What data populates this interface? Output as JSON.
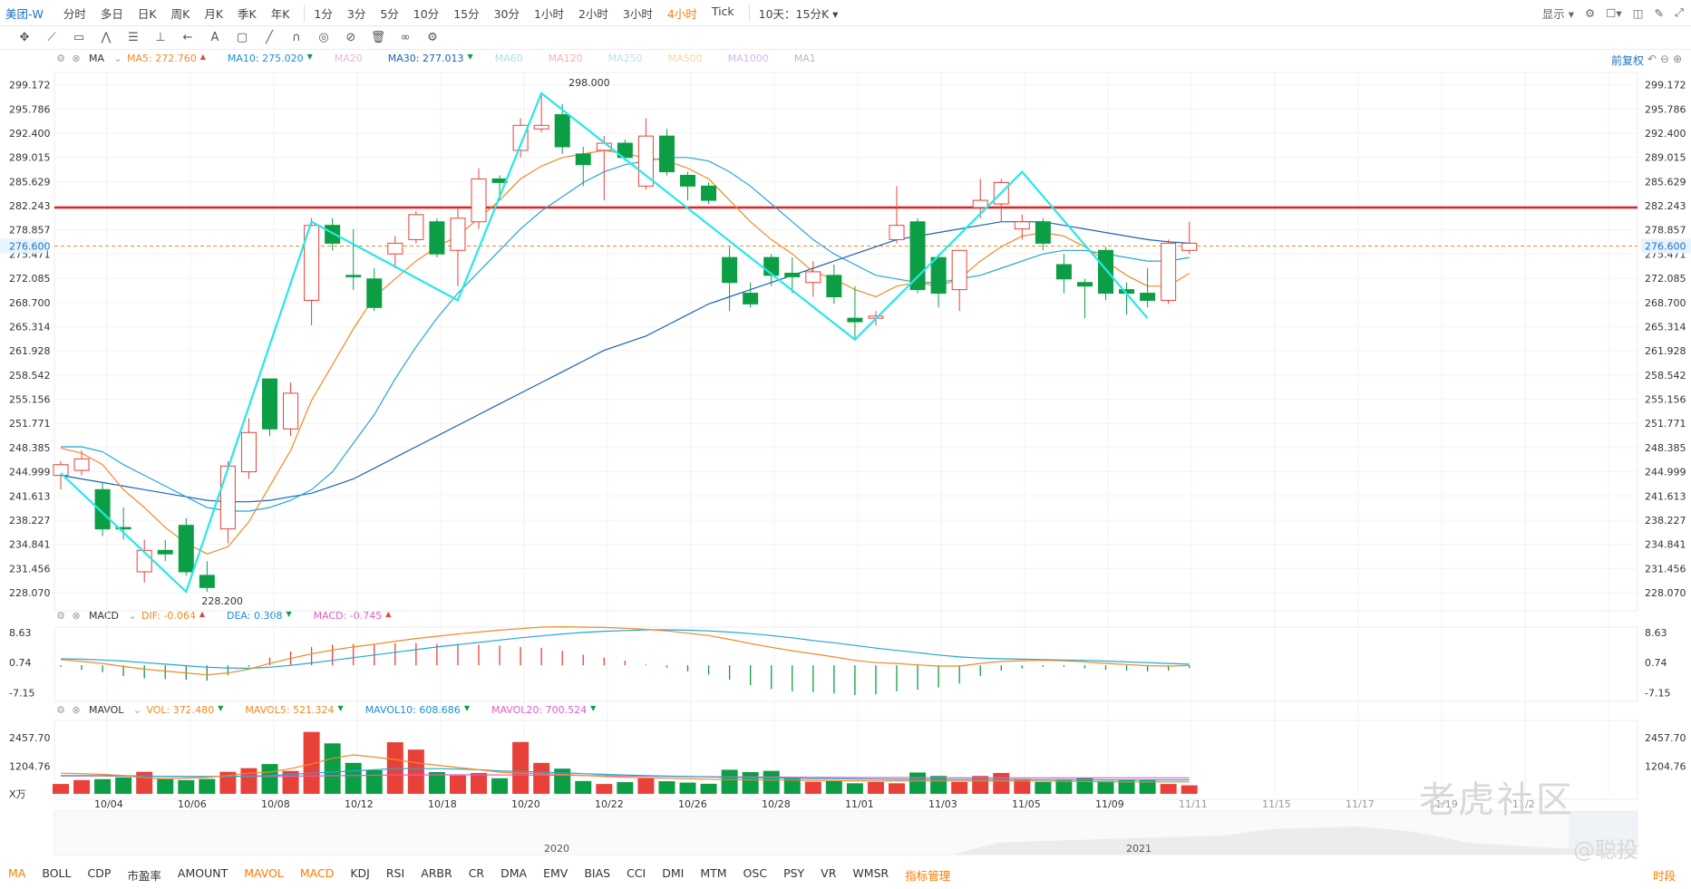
{
  "toolbar": {
    "symbol": "美团-W",
    "periods": [
      "分时",
      "多日",
      "日K",
      "周K",
      "月K",
      "季K",
      "年K",
      "1分",
      "3分",
      "5分",
      "10分",
      "15分",
      "30分",
      "1小时",
      "2小时",
      "3小时",
      "4小时",
      "Tick"
    ],
    "active_period": "4小时",
    "range_selector": "10天：15分K",
    "display_label": "显示"
  },
  "drawing_tools": [
    "move",
    "line",
    "rect",
    "wave",
    "fib",
    "measure",
    "arrow",
    "text",
    "note",
    "pen",
    "magnet",
    "eye-off",
    "trash",
    "link",
    "gear"
  ],
  "main_legend": {
    "indicator": "MA",
    "items": [
      {
        "label": "MA5: 272.760",
        "color": "#f08a24",
        "arrow": "▲"
      },
      {
        "label": "MA10: 275.020",
        "color": "#1b8fd6",
        "arrow": "▼"
      },
      {
        "label": "MA20",
        "color": "#e9b6e0",
        "arrow": ""
      },
      {
        "label": "MA30: 277.013",
        "color": "#1a62b8",
        "arrow": "▼"
      },
      {
        "label": "MA60",
        "color": "#a9e0e8",
        "arrow": ""
      },
      {
        "label": "MA120",
        "color": "#f6b2b2",
        "arrow": ""
      },
      {
        "label": "MA250",
        "color": "#b7dff5",
        "arrow": ""
      },
      {
        "label": "MA500",
        "color": "#f5d89a",
        "arrow": ""
      },
      {
        "label": "MA1000",
        "color": "#d4b6ea",
        "arrow": ""
      },
      {
        "label": "MA1",
        "color": "#bbbbbb",
        "arrow": ""
      }
    ],
    "adjust_label": "前复权"
  },
  "macd_legend": {
    "indicator": "MACD",
    "items": [
      {
        "label": "DIF: -0.064",
        "color": "#f08a24",
        "arrow": "▲"
      },
      {
        "label": "DEA: 0.308",
        "color": "#1b8fd6",
        "arrow": "▼"
      },
      {
        "label": "MACD: -0.745",
        "color": "#e05fc0",
        "arrow": "▲"
      }
    ]
  },
  "vol_legend": {
    "indicator": "MAVOL",
    "items": [
      {
        "label": "VOL: 372.480",
        "color": "#f08a24",
        "arrow": "▼"
      },
      {
        "label": "MAVOL5: 521.324",
        "color": "#f08a24",
        "arrow": "▼"
      },
      {
        "label": "MAVOL10: 608.686",
        "color": "#1b8fd6",
        "arrow": "▼"
      },
      {
        "label": "MAVOL20: 700.524",
        "color": "#e05fc0",
        "arrow": "▼"
      }
    ]
  },
  "indicator_tabs": [
    "MA",
    "BOLL",
    "CDP",
    "市盈率",
    "AMOUNT",
    "MAVOL",
    "MACD",
    "KDJ",
    "RSI",
    "ARBR",
    "CR",
    "DMA",
    "EMV",
    "BIAS",
    "CCI",
    "DMI",
    "MTM",
    "OSC",
    "PSY",
    "VR",
    "WMSR",
    "指标管理"
  ],
  "indicator_tabs_active": [
    "MA",
    "MAVOL",
    "MACD",
    "指标管理"
  ],
  "corner_label": "时段",
  "watermark": {
    "main": "老虎社区",
    "author": "@聪投"
  },
  "chart_data": {
    "type": "candlestick",
    "price_ticks": [
      "299.172",
      "295.786",
      "292.400",
      "289.015",
      "285.629",
      "282.243",
      "278.857",
      "275.471",
      "272.085",
      "268.700",
      "265.314",
      "261.928",
      "258.542",
      "255.156",
      "251.771",
      "248.385",
      "244.999",
      "241.613",
      "238.227",
      "234.841",
      "231.456",
      "228.070"
    ],
    "price_ylim": [
      226.3,
      300.9
    ],
    "current_price": "276.600",
    "resistance_line": 282.0,
    "high_annotation": "298.000",
    "low_annotation": "228.200",
    "x_labels": [
      "10/04",
      "10/06",
      "10/08",
      "10/12",
      "10/18",
      "10/20",
      "10/22",
      "10/26",
      "10/28",
      "11/01",
      "11/03",
      "11/05",
      "11/09",
      "11/11",
      "11/15",
      "11/17",
      "11/19",
      "11/2"
    ],
    "candles": [
      {
        "o": 244.5,
        "h": 246.5,
        "l": 242.5,
        "c": 246.0
      },
      {
        "o": 245.2,
        "h": 248.0,
        "l": 244.5,
        "c": 246.8
      },
      {
        "o": 242.5,
        "h": 243.5,
        "l": 236.0,
        "c": 237.0
      },
      {
        "o": 237.2,
        "h": 240.0,
        "l": 235.5,
        "c": 237.0
      },
      {
        "o": 231.0,
        "h": 235.5,
        "l": 229.5,
        "c": 234.0
      },
      {
        "o": 234.0,
        "h": 235.5,
        "l": 232.5,
        "c": 233.5
      },
      {
        "o": 237.5,
        "h": 238.5,
        "l": 230.5,
        "c": 231.0
      },
      {
        "o": 230.5,
        "h": 232.5,
        "l": 228.2,
        "c": 228.8
      },
      {
        "o": 237.0,
        "h": 246.5,
        "l": 235.0,
        "c": 245.8
      },
      {
        "o": 245.0,
        "h": 252.5,
        "l": 244.0,
        "c": 250.5
      },
      {
        "o": 258.0,
        "h": 258.0,
        "l": 250.0,
        "c": 251.0
      },
      {
        "o": 251.0,
        "h": 257.5,
        "l": 250.0,
        "c": 256.0
      },
      {
        "o": 269.0,
        "h": 280.5,
        "l": 265.5,
        "c": 279.5
      },
      {
        "o": 279.5,
        "h": 280.5,
        "l": 276.0,
        "c": 277.0
      },
      {
        "o": 272.5,
        "h": 279.0,
        "l": 270.5,
        "c": 272.3
      },
      {
        "o": 272.0,
        "h": 273.5,
        "l": 267.5,
        "c": 268.0
      },
      {
        "o": 275.5,
        "h": 278.0,
        "l": 273.5,
        "c": 277.0
      },
      {
        "o": 277.5,
        "h": 281.5,
        "l": 277.0,
        "c": 281.0
      },
      {
        "o": 280.0,
        "h": 280.5,
        "l": 275.0,
        "c": 275.5
      },
      {
        "o": 276.0,
        "h": 282.0,
        "l": 271.0,
        "c": 280.5
      },
      {
        "o": 280.0,
        "h": 287.5,
        "l": 279.0,
        "c": 286.0
      },
      {
        "o": 286.0,
        "h": 286.5,
        "l": 283.0,
        "c": 285.5
      },
      {
        "o": 290.0,
        "h": 294.5,
        "l": 289.0,
        "c": 293.5
      },
      {
        "o": 293.0,
        "h": 298.0,
        "l": 292.5,
        "c": 293.5
      },
      {
        "o": 295.0,
        "h": 296.5,
        "l": 289.5,
        "c": 290.5
      },
      {
        "o": 289.5,
        "h": 290.5,
        "l": 285.0,
        "c": 288.0
      },
      {
        "o": 290.0,
        "h": 292.0,
        "l": 283.0,
        "c": 291.0
      },
      {
        "o": 291.0,
        "h": 291.5,
        "l": 288.5,
        "c": 289.0
      },
      {
        "o": 285.0,
        "h": 294.5,
        "l": 284.5,
        "c": 292.0
      },
      {
        "o": 292.0,
        "h": 293.0,
        "l": 286.5,
        "c": 287.0
      },
      {
        "o": 286.5,
        "h": 287.0,
        "l": 283.0,
        "c": 285.0
      },
      {
        "o": 285.0,
        "h": 285.5,
        "l": 282.5,
        "c": 283.0
      },
      {
        "o": 275.0,
        "h": 276.5,
        "l": 267.5,
        "c": 271.5
      },
      {
        "o": 270.0,
        "h": 271.5,
        "l": 268.0,
        "c": 268.5
      },
      {
        "o": 275.0,
        "h": 275.5,
        "l": 271.0,
        "c": 272.5
      },
      {
        "o": 272.8,
        "h": 275.0,
        "l": 270.0,
        "c": 272.3
      },
      {
        "o": 271.5,
        "h": 274.5,
        "l": 269.5,
        "c": 273.0
      },
      {
        "o": 272.5,
        "h": 274.0,
        "l": 268.5,
        "c": 269.5
      },
      {
        "o": 266.5,
        "h": 271.0,
        "l": 263.5,
        "c": 266.0
      },
      {
        "o": 266.5,
        "h": 267.5,
        "l": 265.5,
        "c": 266.8
      },
      {
        "o": 277.5,
        "h": 285.0,
        "l": 277.0,
        "c": 279.5
      },
      {
        "o": 280.0,
        "h": 280.5,
        "l": 270.0,
        "c": 270.5
      },
      {
        "o": 275.0,
        "h": 275.5,
        "l": 268.0,
        "c": 270.0
      },
      {
        "o": 270.5,
        "h": 276.0,
        "l": 267.5,
        "c": 276.0
      },
      {
        "o": 282.0,
        "h": 286.0,
        "l": 280.5,
        "c": 283.0
      },
      {
        "o": 282.5,
        "h": 286.0,
        "l": 280.0,
        "c": 285.5
      },
      {
        "o": 279.0,
        "h": 281.0,
        "l": 277.5,
        "c": 280.0
      },
      {
        "o": 280.0,
        "h": 280.5,
        "l": 276.0,
        "c": 277.0
      },
      {
        "o": 274.0,
        "h": 275.5,
        "l": 270.0,
        "c": 272.0
      },
      {
        "o": 271.5,
        "h": 272.0,
        "l": 266.5,
        "c": 271.0
      },
      {
        "o": 276.0,
        "h": 276.5,
        "l": 269.0,
        "c": 270.0
      },
      {
        "o": 270.5,
        "h": 271.5,
        "l": 267.0,
        "c": 270.0
      },
      {
        "o": 270.0,
        "h": 273.5,
        "l": 268.0,
        "c": 269.0
      },
      {
        "o": 269.0,
        "h": 277.5,
        "l": 268.5,
        "c": 277.0
      },
      {
        "o": 276.0,
        "h": 280.0,
        "l": 275.5,
        "c": 277.0
      }
    ],
    "ma5": [
      248.3,
      247.6,
      246.0,
      242.5,
      240.0,
      237.2,
      235.0,
      233.5,
      234.5,
      238.0,
      243.0,
      248.0,
      255.0,
      260.0,
      265.0,
      269.5,
      272.0,
      274.5,
      276.5,
      278.0,
      280.5,
      283.0,
      286.0,
      287.8,
      289.0,
      289.5,
      290.0,
      289.5,
      289.0,
      288.5,
      287.5,
      286.0,
      283.0,
      280.0,
      277.5,
      275.5,
      273.0,
      272.0,
      270.5,
      269.5,
      271.0,
      271.5,
      271.0,
      272.0,
      274.5,
      276.5,
      278.0,
      278.5,
      278.0,
      276.5,
      274.5,
      272.5,
      271.0,
      271.0,
      272.8
    ],
    "ma10": [
      248.5,
      248.5,
      247.8,
      246.0,
      244.5,
      243.0,
      241.5,
      240.0,
      239.5,
      239.5,
      240.0,
      241.0,
      242.5,
      245.0,
      249.0,
      253.0,
      258.0,
      262.5,
      266.5,
      270.0,
      273.0,
      276.0,
      279.0,
      281.5,
      283.5,
      285.5,
      287.0,
      288.0,
      288.5,
      289.0,
      289.0,
      288.5,
      287.0,
      285.0,
      282.5,
      280.0,
      277.5,
      275.5,
      274.0,
      272.5,
      272.0,
      271.5,
      271.5,
      272.0,
      272.5,
      273.5,
      274.5,
      275.5,
      276.0,
      276.0,
      275.5,
      275.0,
      274.5,
      274.5,
      275.0
    ],
    "ma30": [
      244.5,
      244.0,
      243.5,
      243.0,
      242.5,
      242.0,
      241.5,
      241.0,
      240.8,
      240.8,
      241.0,
      241.5,
      242.0,
      243.0,
      244.0,
      245.5,
      247.0,
      248.5,
      250.0,
      251.5,
      253.0,
      254.5,
      256.0,
      257.5,
      259.0,
      260.5,
      262.0,
      263.0,
      264.0,
      265.5,
      267.0,
      268.5,
      269.5,
      270.5,
      271.5,
      272.5,
      273.5,
      274.5,
      275.5,
      276.5,
      277.5,
      278.0,
      278.5,
      279.0,
      279.5,
      280.0,
      280.0,
      280.0,
      279.5,
      279.0,
      278.5,
      278.0,
      277.5,
      277.2,
      277.0
    ],
    "zigzag": [
      [
        0,
        244.8
      ],
      [
        6,
        228.2
      ],
      [
        12,
        280.0
      ],
      [
        19,
        269.0
      ],
      [
        23,
        298.0
      ],
      [
        38,
        263.5
      ],
      [
        46,
        287.0
      ],
      [
        52,
        266.5
      ]
    ],
    "macd_ticks": [
      "8.63",
      "0.74",
      "-7.15"
    ],
    "macd_ylim": [
      -8.5,
      10.0
    ],
    "dif": [
      1.5,
      1.0,
      0.5,
      -0.3,
      -1.0,
      -1.5,
      -2.0,
      -2.5,
      -2.0,
      -1.0,
      0.5,
      1.8,
      3.0,
      4.0,
      4.8,
      5.5,
      6.3,
      7.0,
      7.6,
      8.2,
      8.7,
      9.2,
      9.6,
      10.0,
      10.1,
      10.0,
      9.9,
      9.7,
      9.4,
      9.0,
      8.4,
      7.8,
      6.8,
      5.7,
      4.7,
      3.8,
      3.0,
      2.2,
      1.3,
      0.7,
      0.5,
      0.1,
      -0.2,
      -0.2,
      0.5,
      1.0,
      1.2,
      1.3,
      1.2,
      0.9,
      0.5,
      0.2,
      -0.1,
      -0.2,
      -0.06
    ],
    "dea": [
      1.7,
      1.6,
      1.4,
      1.1,
      0.7,
      0.3,
      -0.1,
      -0.5,
      -0.7,
      -0.8,
      -0.5,
      0.0,
      0.6,
      1.3,
      2.0,
      2.7,
      3.4,
      4.1,
      4.8,
      5.4,
      6.0,
      6.6,
      7.2,
      7.7,
      8.2,
      8.6,
      8.9,
      9.1,
      9.3,
      9.3,
      9.2,
      9.0,
      8.7,
      8.3,
      7.8,
      7.2,
      6.5,
      5.9,
      5.2,
      4.5,
      3.9,
      3.3,
      2.7,
      2.2,
      1.9,
      1.7,
      1.6,
      1.5,
      1.4,
      1.3,
      1.1,
      0.9,
      0.7,
      0.5,
      0.31
    ],
    "vol_ticks": [
      "2457.70",
      "1204.76",
      "X万"
    ],
    "vol_ylim": [
      0,
      3200
    ],
    "volumes": [
      430,
      600,
      640,
      720,
      960,
      680,
      600,
      650,
      960,
      1120,
      1300,
      1000,
      2700,
      2200,
      1350,
      1030,
      2250,
      1930,
      950,
      800,
      910,
      680,
      2260,
      1350,
      1100,
      560,
      430,
      510,
      680,
      550,
      490,
      440,
      1050,
      950,
      1000,
      700,
      530,
      560,
      460,
      520,
      460,
      930,
      780,
      520,
      780,
      910,
      650,
      520,
      630,
      700,
      560,
      630,
      600,
      430,
      372.48
    ],
    "mavol5": [
      900,
      880,
      850,
      800,
      700,
      650,
      680,
      720,
      800,
      900,
      950,
      1100,
      1300,
      1550,
      1700,
      1600,
      1500,
      1350,
      1250,
      1150,
      1050,
      950,
      900,
      880,
      850,
      800,
      760,
      720,
      700,
      680,
      660,
      640,
      620,
      610,
      600,
      600,
      590,
      580,
      570,
      560,
      560,
      560,
      560,
      560,
      560,
      560,
      560,
      560,
      550,
      540,
      530,
      520,
      520,
      520,
      521
    ],
    "mavol10": [
      800,
      800,
      800,
      790,
      780,
      760,
      750,
      750,
      760,
      780,
      800,
      850,
      900,
      950,
      1000,
      1050,
      1100,
      1100,
      1100,
      1080,
      1050,
      1000,
      980,
      950,
      920,
      880,
      850,
      820,
      800,
      780,
      760,
      740,
      720,
      700,
      690,
      680,
      670,
      660,
      650,
      640,
      630,
      630,
      630,
      630,
      630,
      630,
      620,
      620,
      620,
      615,
      610,
      610,
      610,
      608,
      608.7
    ],
    "mavol20": [
      780,
      780,
      780,
      775,
      770,
      765,
      760,
      760,
      760,
      760,
      765,
      770,
      780,
      790,
      800,
      810,
      820,
      825,
      830,
      830,
      830,
      825,
      820,
      815,
      810,
      800,
      790,
      780,
      770,
      760,
      750,
      745,
      740,
      735,
      730,
      725,
      720,
      715,
      710,
      708,
      706,
      705,
      704,
      703,
      702,
      702,
      701,
      701,
      701,
      700,
      700,
      700,
      700,
      700,
      700.5
    ],
    "nav_year_labels": [
      "2020",
      "2021"
    ]
  },
  "colors": {
    "up": "#e8413a",
    "down": "#0c9e44",
    "zigzag": "#27e7e9",
    "resistance": "#e22020",
    "current": "#f08a24"
  }
}
